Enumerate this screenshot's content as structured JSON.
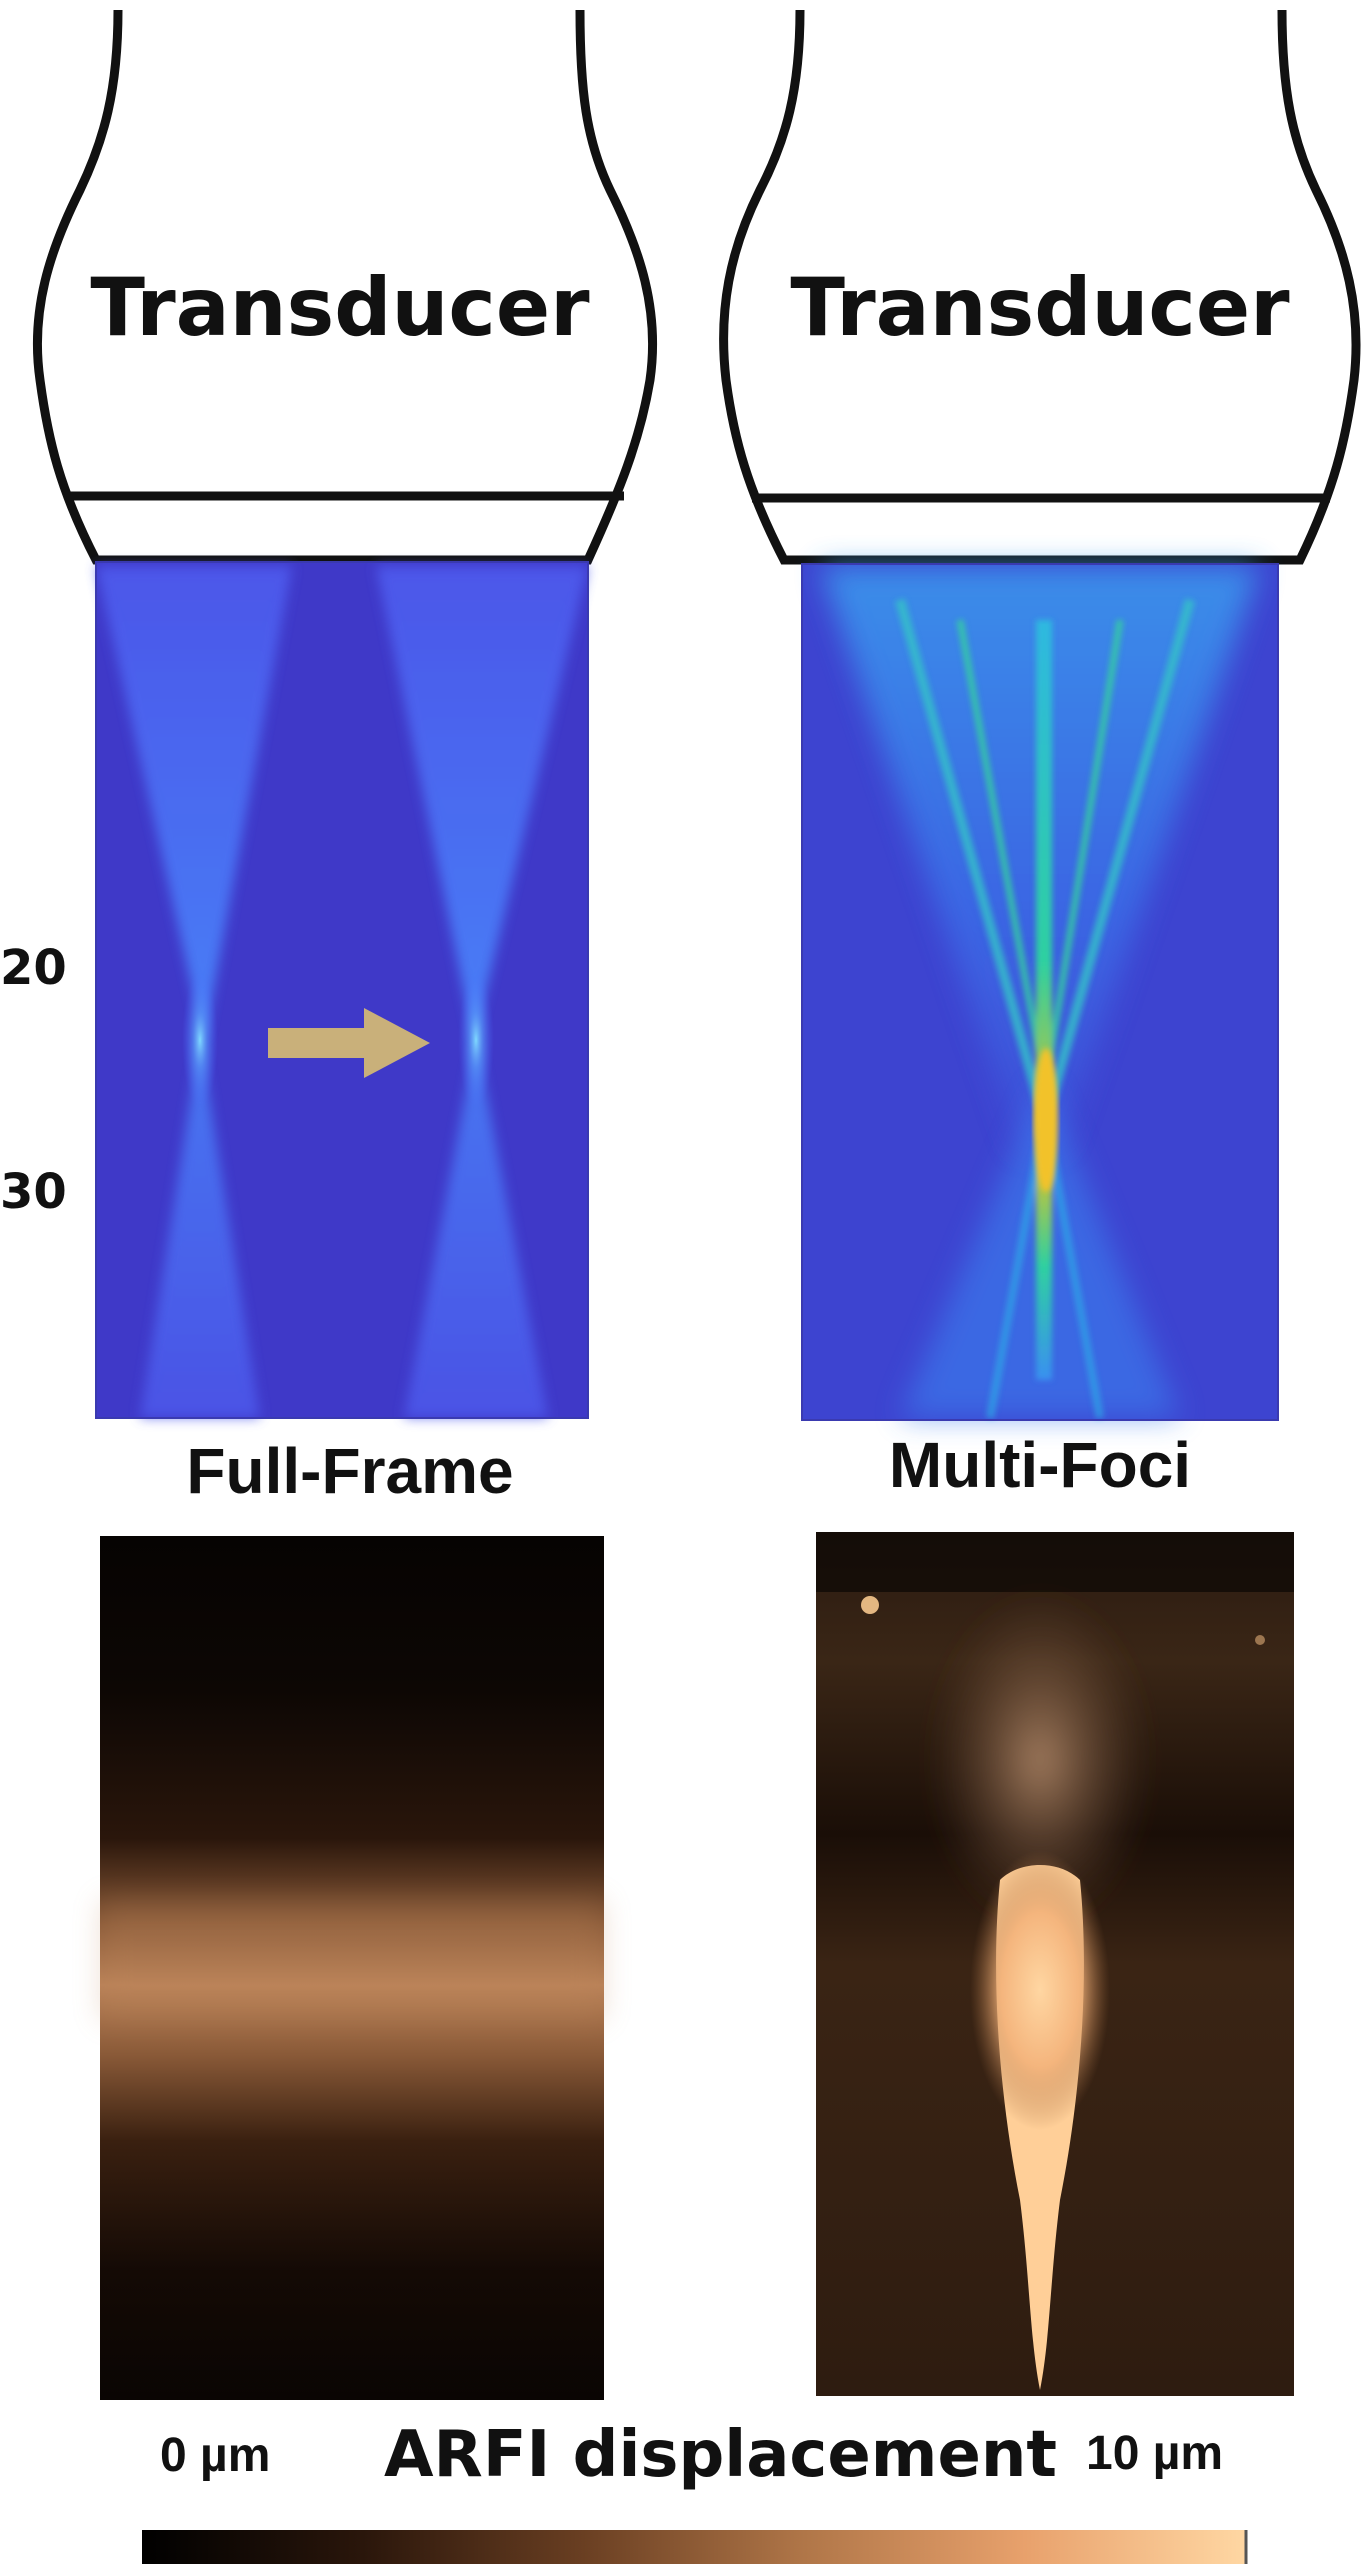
{
  "transducers": [
    {
      "label": "Transducer"
    },
    {
      "label": "Transducer"
    }
  ],
  "depth_ticks": [
    "20",
    "30"
  ],
  "panels": {
    "full_frame": {
      "title": "Full-Frame"
    },
    "multi_foci": {
      "title": "Multi-Foci"
    }
  },
  "colorbar": {
    "title": "ARFI displacement",
    "min_label": "0 µm",
    "max_label": "10 µm",
    "colors": [
      "#000000",
      "#2a160b",
      "#6a3f22",
      "#b07648",
      "#e8a16c",
      "#ffd7a3"
    ]
  },
  "colors": {
    "beam_background": "#3f39c8",
    "beam_low": "#4a6bff",
    "beam_mid": "#22c8d8",
    "beam_high": "#f0c020",
    "arrow": "#c9b07a",
    "outline": "#111111"
  },
  "icons": {
    "shift_arrow": "right-arrow-icon"
  }
}
